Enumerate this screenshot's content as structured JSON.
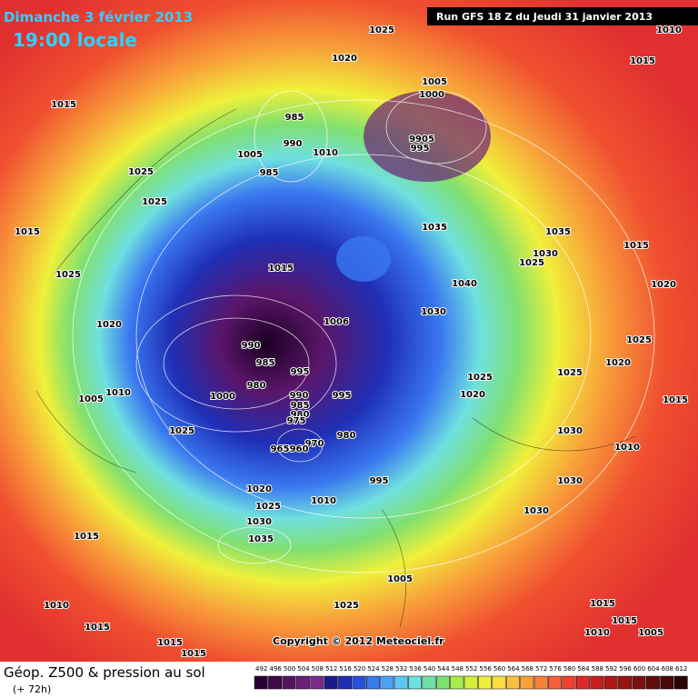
{
  "header": {
    "date": "Dimanche 3 février 2013",
    "time": "19:00 locale",
    "run": "Run GFS 18 Z du Jeudi 31 janvier 2013"
  },
  "footer": {
    "title": "Géop. Z500 & pression au sol",
    "lead": "(+ 72h)",
    "copyright": "Copyright © 2012 Meteociel.fr"
  },
  "scale": {
    "labels": [
      492,
      496,
      500,
      504,
      508,
      512,
      516,
      520,
      524,
      528,
      532,
      536,
      540,
      544,
      548,
      552,
      556,
      560,
      564,
      568,
      572,
      576,
      580,
      584,
      588,
      592,
      596,
      600,
      604,
      608,
      612
    ],
    "colors": [
      "#2a0033",
      "#3f0a4a",
      "#55155e",
      "#6a1f78",
      "#7a2a8e",
      "#1a1a8c",
      "#1f2fb5",
      "#2850d8",
      "#3a78f0",
      "#4fa0f8",
      "#5cc6f5",
      "#6fe0e0",
      "#70e0a8",
      "#80e070",
      "#a8ec4a",
      "#d2f03a",
      "#f0f03a",
      "#fae040",
      "#fac040",
      "#f8a03a",
      "#f8803a",
      "#f5603a",
      "#f04030",
      "#e02828",
      "#c81e1e",
      "#b01818",
      "#981414",
      "#7d1010",
      "#620c0c",
      "#480808",
      "#2a0404"
    ]
  },
  "pressure_labels": [
    "1025",
    "1010",
    "1015",
    "1020",
    "1015",
    "1005",
    "1000",
    "985",
    "9905",
    "995",
    "990",
    "1005",
    "985",
    "1010",
    "1025",
    "1025",
    "1015",
    "1035",
    "1035",
    "1030",
    "1025",
    "1015",
    "1025",
    "1015",
    "1040",
    "1020",
    "1030",
    "1006",
    "1020",
    "990",
    "1025",
    "985",
    "995",
    "1020",
    "1025",
    "1025",
    "980",
    "1000",
    "990",
    "1010",
    "1005",
    "1020",
    "995",
    "985",
    "980",
    "975",
    "1015",
    "1030",
    "1025",
    "980",
    "970",
    "965",
    "960",
    "1010",
    "995",
    "1030",
    "1020",
    "1010",
    "1025",
    "1030",
    "1030",
    "1015",
    "1035",
    "1005",
    "1010",
    "1015",
    "1025",
    "1015",
    "1015",
    "1010",
    "1005",
    "1015",
    "1015"
  ]
}
